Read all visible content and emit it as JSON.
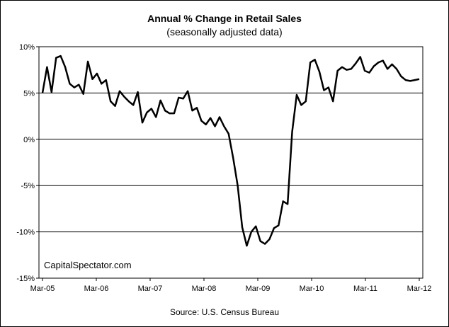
{
  "chart_data": {
    "type": "line",
    "title": "Annual %  Change in Retail Sales",
    "subtitle": "(seasonally adjusted data)",
    "source": "Source: U.S. Census Bureau",
    "watermark": "CapitalSpectator.com",
    "xlabel": "",
    "ylabel": "",
    "ylim": [
      -15,
      10
    ],
    "yticks": [
      -15,
      -10,
      -5,
      0,
      5,
      10
    ],
    "ytick_labels": [
      "-15%",
      "-10%",
      "-5%",
      "0%",
      "5%",
      "10%"
    ],
    "xtick_labels": [
      "Mar-05",
      "Mar-06",
      "Mar-07",
      "Mar-08",
      "Mar-09",
      "Mar-10",
      "Mar-11",
      "Mar-12"
    ],
    "grid": "horizontal",
    "line_color": "#000000",
    "series": [
      {
        "values": [
          5.0,
          7.8,
          5.1,
          8.8,
          9.0,
          7.8,
          6.0,
          5.6,
          5.9,
          4.9,
          8.4,
          6.5,
          7.1,
          6.0,
          6.4,
          4.1,
          3.6,
          5.2,
          4.6,
          4.1,
          3.7,
          5.1,
          1.8,
          2.9,
          3.3,
          2.4,
          4.2,
          3.1,
          2.8,
          2.8,
          4.5,
          4.4,
          5.2,
          3.1,
          3.4,
          2.0,
          1.6,
          2.3,
          1.4,
          2.4,
          1.4,
          0.6,
          -2.0,
          -5.0,
          -9.5,
          -11.5,
          -10.0,
          -9.4,
          -11.0,
          -11.3,
          -10.8,
          -9.6,
          -9.3,
          -6.7,
          -7.0,
          0.8,
          4.8,
          3.7,
          4.1,
          8.3,
          8.6,
          7.3,
          5.3,
          5.6,
          4.1,
          7.4,
          7.8,
          7.5,
          7.6,
          8.2,
          8.9,
          7.4,
          7.2,
          7.9,
          8.3,
          8.5,
          7.6,
          8.1,
          7.6,
          6.8,
          6.4,
          6.3,
          6.4,
          6.5
        ]
      }
    ]
  }
}
